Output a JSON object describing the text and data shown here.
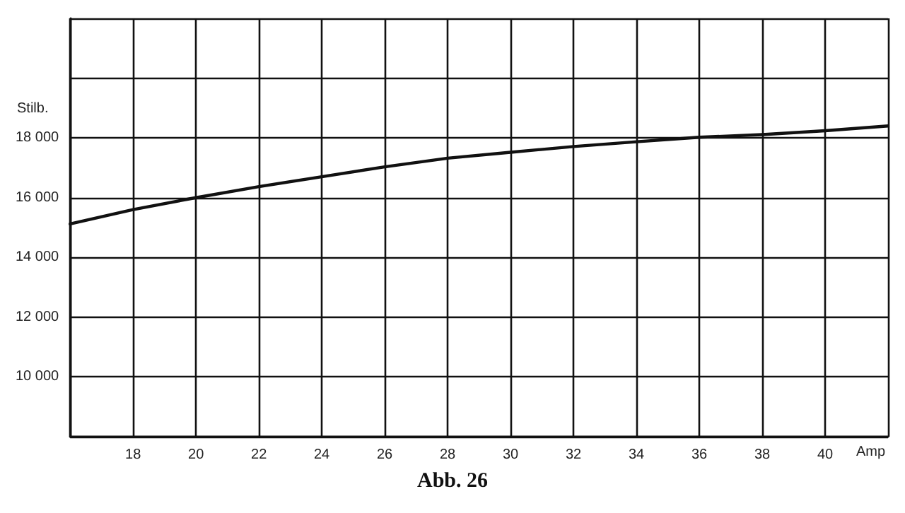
{
  "chart_data": {
    "type": "line",
    "title": "Abb. 26",
    "xlabel": "Amp",
    "ylabel": "Stilb.",
    "x": [
      16,
      18,
      20,
      22,
      24,
      26,
      28,
      30,
      32,
      34,
      36,
      38,
      40,
      42
    ],
    "series": [
      {
        "color": "#111111",
        "values": [
          15120,
          15600,
          16000,
          16370,
          16700,
          17030,
          17320,
          17520,
          17710,
          17870,
          18020,
          18110,
          18240,
          18400
        ]
      }
    ],
    "xlim": [
      16,
      42
    ],
    "xticks": [
      {
        "value": 16,
        "label": null
      },
      18,
      20,
      22,
      24,
      26,
      28,
      30,
      32,
      34,
      36,
      38,
      40,
      {
        "value": 42,
        "label": null
      }
    ],
    "ylim": [
      8000,
      22000
    ],
    "yticks": [
      {
        "value": 8000,
        "label": null
      },
      {
        "value": 10000,
        "label": "10 000"
      },
      {
        "value": 12000,
        "label": "12 000"
      },
      {
        "value": 14000,
        "label": "14 000"
      },
      {
        "value": 16000,
        "label": "16 000"
      },
      {
        "value": 18000,
        "label": "18 000"
      },
      {
        "value": 20000,
        "label": null
      },
      {
        "value": 22000,
        "label": null
      }
    ],
    "grid": true,
    "marker": "none",
    "line_style": "solid"
  }
}
